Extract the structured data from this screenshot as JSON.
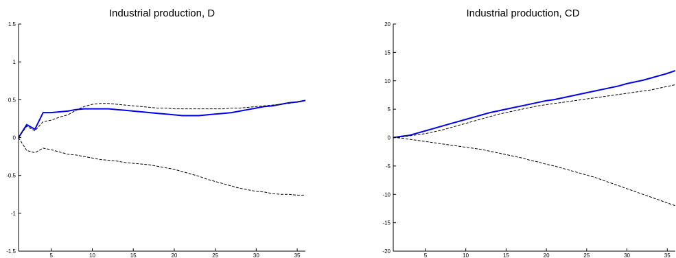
{
  "chart_data": [
    {
      "type": "line",
      "title": "Industrial production, D",
      "xlabel": "",
      "ylabel": "",
      "xlim": [
        1,
        36
      ],
      "ylim": [
        -1.5,
        1.5
      ],
      "x_ticks": [
        5,
        10,
        15,
        20,
        25,
        30,
        35
      ],
      "y_ticks": [
        1.5,
        1,
        0.5,
        0,
        -0.5,
        -1,
        -1.5
      ],
      "y_tick_labels": [
        "1.5",
        "1",
        "0.5",
        "0",
        "-0.5",
        "-1",
        "-1.5"
      ],
      "grid": false,
      "colors": {
        "response": "#0000ee",
        "bands": "#000000"
      },
      "series": [
        {
          "style": "solid",
          "x": [
            1,
            2,
            3,
            4,
            5,
            6,
            7,
            8,
            9,
            10,
            11,
            12,
            13,
            14,
            15,
            16,
            17,
            18,
            19,
            20,
            21,
            22,
            23,
            24,
            25,
            26,
            27,
            28,
            29,
            30,
            31,
            32,
            33,
            34,
            35,
            36
          ],
          "values": [
            0,
            0.17,
            0.11,
            0.33,
            0.33,
            0.34,
            0.35,
            0.37,
            0.38,
            0.38,
            0.38,
            0.38,
            0.37,
            0.36,
            0.35,
            0.34,
            0.33,
            0.32,
            0.31,
            0.3,
            0.29,
            0.29,
            0.29,
            0.3,
            0.31,
            0.32,
            0.33,
            0.35,
            0.37,
            0.39,
            0.41,
            0.42,
            0.44,
            0.46,
            0.47,
            0.49
          ]
        },
        {
          "style": "dashed",
          "x": [
            1,
            2,
            3,
            4,
            5,
            6,
            7,
            8,
            9,
            10,
            11,
            12,
            13,
            14,
            15,
            16,
            17,
            18,
            19,
            20,
            21,
            22,
            23,
            24,
            25,
            26,
            27,
            28,
            29,
            30,
            31,
            32,
            33,
            34,
            35,
            36
          ],
          "values": [
            0,
            0.15,
            0.09,
            0.21,
            0.23,
            0.27,
            0.3,
            0.36,
            0.41,
            0.44,
            0.45,
            0.45,
            0.44,
            0.43,
            0.42,
            0.41,
            0.4,
            0.39,
            0.39,
            0.38,
            0.38,
            0.38,
            0.38,
            0.38,
            0.38,
            0.38,
            0.39,
            0.39,
            0.4,
            0.41,
            0.42,
            0.43,
            0.44,
            0.45,
            0.47,
            0.49
          ]
        },
        {
          "style": "dashed",
          "x": [
            1,
            2,
            3,
            4,
            5,
            6,
            7,
            8,
            9,
            10,
            11,
            12,
            13,
            14,
            15,
            16,
            17,
            18,
            19,
            20,
            21,
            22,
            23,
            24,
            25,
            26,
            27,
            28,
            29,
            30,
            31,
            32,
            33,
            34,
            35,
            36
          ],
          "values": [
            0,
            -0.17,
            -0.2,
            -0.14,
            -0.16,
            -0.19,
            -0.22,
            -0.23,
            -0.25,
            -0.27,
            -0.29,
            -0.3,
            -0.31,
            -0.33,
            -0.34,
            -0.35,
            -0.36,
            -0.38,
            -0.4,
            -0.42,
            -0.45,
            -0.48,
            -0.51,
            -0.55,
            -0.58,
            -0.61,
            -0.64,
            -0.67,
            -0.69,
            -0.71,
            -0.72,
            -0.74,
            -0.75,
            -0.75,
            -0.76,
            -0.76
          ]
        }
      ]
    },
    {
      "type": "line",
      "title": "Industrial production, CD",
      "xlabel": "",
      "ylabel": "",
      "xlim": [
        1,
        36
      ],
      "ylim": [
        -20,
        20
      ],
      "x_ticks": [
        5,
        10,
        15,
        20,
        25,
        30,
        35
      ],
      "y_ticks": [
        20,
        15,
        10,
        5,
        0,
        -5,
        -10,
        -15,
        -20
      ],
      "y_tick_labels": [
        "20",
        "15",
        "10",
        "5",
        "0",
        "-5",
        "-10",
        "-15",
        "-20"
      ],
      "grid": false,
      "colors": {
        "response": "#0000ee",
        "bands": "#000000"
      },
      "series": [
        {
          "style": "solid",
          "x": [
            1,
            2,
            3,
            4,
            5,
            6,
            7,
            8,
            9,
            10,
            11,
            12,
            13,
            14,
            15,
            16,
            17,
            18,
            19,
            20,
            21,
            22,
            23,
            24,
            25,
            26,
            27,
            28,
            29,
            30,
            31,
            32,
            33,
            34,
            35,
            36
          ],
          "values": [
            0,
            0.2,
            0.4,
            0.8,
            1.2,
            1.6,
            2.0,
            2.4,
            2.8,
            3.2,
            3.6,
            4.0,
            4.4,
            4.7,
            5.0,
            5.3,
            5.6,
            5.9,
            6.2,
            6.5,
            6.7,
            7.0,
            7.3,
            7.6,
            7.9,
            8.2,
            8.5,
            8.8,
            9.1,
            9.5,
            9.8,
            10.1,
            10.5,
            10.9,
            11.3,
            11.8
          ]
        },
        {
          "style": "dashed",
          "x": [
            1,
            2,
            3,
            4,
            5,
            6,
            7,
            8,
            9,
            10,
            11,
            12,
            13,
            14,
            15,
            16,
            17,
            18,
            19,
            20,
            21,
            22,
            23,
            24,
            25,
            26,
            27,
            28,
            29,
            30,
            31,
            32,
            33,
            34,
            35,
            36
          ],
          "values": [
            0,
            0.1,
            0.3,
            0.5,
            0.7,
            1.0,
            1.3,
            1.7,
            2.1,
            2.5,
            2.9,
            3.3,
            3.7,
            4.1,
            4.4,
            4.7,
            5.0,
            5.3,
            5.6,
            5.8,
            6.0,
            6.2,
            6.4,
            6.6,
            6.8,
            7.0,
            7.2,
            7.4,
            7.6,
            7.8,
            8.0,
            8.2,
            8.4,
            8.7,
            9.0,
            9.3
          ]
        },
        {
          "style": "dashed",
          "x": [
            1,
            2,
            3,
            4,
            5,
            6,
            7,
            8,
            9,
            10,
            11,
            12,
            13,
            14,
            15,
            16,
            17,
            18,
            19,
            20,
            21,
            22,
            23,
            24,
            25,
            26,
            27,
            28,
            29,
            30,
            31,
            32,
            33,
            34,
            35,
            36
          ],
          "values": [
            0,
            -0.1,
            -0.3,
            -0.5,
            -0.7,
            -0.9,
            -1.1,
            -1.3,
            -1.5,
            -1.7,
            -1.9,
            -2.1,
            -2.4,
            -2.7,
            -3.0,
            -3.3,
            -3.6,
            -4.0,
            -4.3,
            -4.7,
            -5.0,
            -5.4,
            -5.8,
            -6.2,
            -6.6,
            -7.0,
            -7.5,
            -8.0,
            -8.5,
            -9.0,
            -9.5,
            -10.0,
            -10.5,
            -11.0,
            -11.5,
            -12.0
          ]
        }
      ]
    }
  ]
}
